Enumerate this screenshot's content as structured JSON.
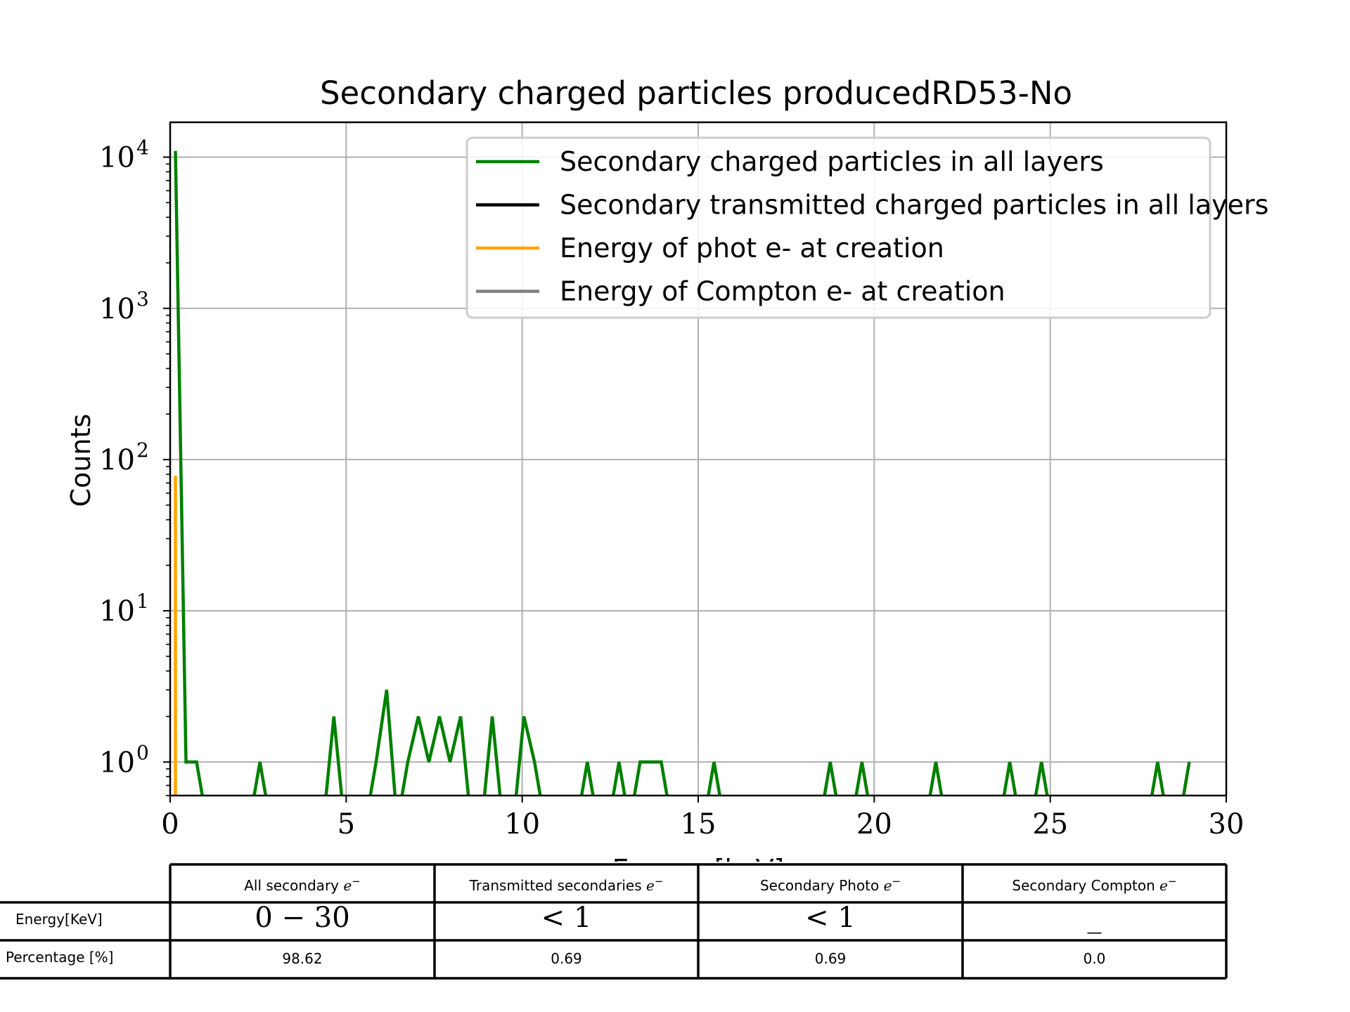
{
  "chart_data": {
    "type": "line",
    "title": "Secondary charged particles producedRD53-No",
    "xlabel": "Energy [keV]",
    "ylabel": "Counts",
    "xlim": [
      0,
      30
    ],
    "ylim": [
      0.6,
      17000
    ],
    "yscale": "log",
    "grid": true,
    "legend_position": "upper right",
    "x_ticks": [
      "0",
      "5",
      "10",
      "15",
      "20",
      "25",
      "30"
    ],
    "y_ticks": [
      {
        "base": "10",
        "exp": "0"
      },
      {
        "base": "10",
        "exp": "1"
      },
      {
        "base": "10",
        "exp": "2"
      },
      {
        "base": "10",
        "exp": "3"
      },
      {
        "base": "10",
        "exp": "4"
      }
    ],
    "series": [
      {
        "name": "Secondary charged particles in all layers",
        "color": "#008000",
        "x": [
          0.15,
          0.45,
          0.75,
          1.05,
          1.35,
          1.65,
          1.95,
          2.25,
          2.55,
          2.85,
          3.15,
          3.45,
          3.75,
          4.05,
          4.35,
          4.65,
          4.95,
          5.25,
          5.55,
          5.85,
          6.15,
          6.45,
          6.75,
          7.05,
          7.35,
          7.65,
          7.95,
          8.25,
          8.55,
          8.85,
          9.15,
          9.45,
          9.75,
          10.05,
          10.35,
          10.65,
          10.95,
          11.25,
          11.55,
          11.85,
          12.15,
          12.45,
          12.75,
          13.05,
          13.35,
          13.65,
          13.95,
          14.25,
          14.55,
          14.85,
          15.15,
          15.45,
          15.75,
          16.05,
          16.35,
          16.65,
          16.95,
          17.25,
          17.55,
          17.85,
          18.15,
          18.45,
          18.75,
          19.05,
          19.35,
          19.65,
          19.95,
          20.25,
          20.55,
          20.85,
          21.15,
          21.45,
          21.75,
          22.05,
          22.35,
          22.65,
          22.95,
          23.25,
          23.55,
          23.85,
          24.15,
          24.45,
          24.75,
          25.05,
          25.35,
          25.65,
          25.95,
          26.25,
          26.55,
          26.85,
          27.15,
          27.45,
          27.75,
          28.05,
          28.35,
          28.65,
          28.95
        ],
        "values": [
          11000,
          1,
          1,
          0,
          0,
          0,
          0,
          0,
          1,
          0,
          0,
          0,
          0,
          0,
          0,
          2,
          0,
          0,
          0,
          1,
          3,
          0,
          1,
          2,
          1,
          2,
          1,
          2,
          0,
          0,
          2,
          0,
          0,
          2,
          1,
          0,
          0,
          0,
          0,
          1,
          0,
          0,
          1,
          0,
          1,
          1,
          1,
          0,
          0,
          0,
          0,
          1,
          0,
          0,
          0,
          0,
          0,
          0,
          0,
          0,
          0,
          0,
          1,
          0,
          0,
          1,
          0,
          0,
          0,
          0,
          0,
          0,
          1,
          0,
          0,
          0,
          0,
          0,
          0,
          1,
          0,
          0,
          1,
          0,
          0,
          0,
          0,
          0,
          0,
          0,
          0,
          0,
          0,
          1,
          0,
          0,
          1
        ]
      },
      {
        "name": "Secondary transmitted charged particles in all layers",
        "color": "#000000",
        "x": [
          0.15
        ],
        "values": [
          0
        ]
      },
      {
        "name": "Energy of phot e- at creation",
        "color": "#FFA500",
        "x": [
          0.15
        ],
        "values": [
          78
        ]
      },
      {
        "name": "Energy of Compton e- at creation",
        "color": "#808080",
        "x": [
          0.15
        ],
        "values": [
          0
        ]
      }
    ],
    "table": {
      "col_labels": [
        "All secondary ",
        "Transmitted secondaries ",
        "Secondary Photo ",
        "Secondary Compton "
      ],
      "col_math": "e",
      "col_math_sup": "−",
      "row_labels": [
        "Energy[KeV]",
        "Percentage [%]"
      ],
      "rows": [
        [
          "0 − 30",
          "< 1",
          "< 1",
          "_"
        ],
        [
          "98.62",
          "0.69",
          "0.69",
          "0.0"
        ]
      ]
    }
  }
}
